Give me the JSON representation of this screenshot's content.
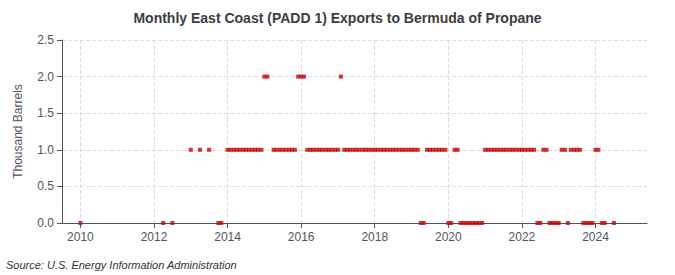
{
  "chart_data": {
    "type": "scatter",
    "title": "Monthly East Coast (PADD 1) Exports to Bermuda of Propane",
    "ylabel": "Thousand Barrels",
    "annotation": "Source: U.S. Energy Information Administration",
    "color": "#cc0000",
    "marker": "square",
    "grid": true,
    "xlim": [
      2009.5,
      2025.4
    ],
    "xticks": [
      2010,
      2012,
      2014,
      2016,
      2018,
      2020,
      2022,
      2024
    ],
    "ylim": [
      0.0,
      2.5
    ],
    "yticks": [
      {
        "value": 0.0,
        "label": "0.0"
      },
      0.5,
      {
        "value": 1.0,
        "label": "1.0"
      },
      1.5,
      {
        "value": 2.0,
        "label": "2.0"
      },
      2.5
    ],
    "x": [
      2010.0,
      2012.25,
      2012.5,
      2013.0,
      2013.25,
      2013.5,
      2013.75,
      2013.83,
      2014.0,
      2014.08,
      2014.17,
      2014.25,
      2014.33,
      2014.42,
      2014.5,
      2014.58,
      2014.67,
      2014.75,
      2014.83,
      2014.92,
      2015.0,
      2015.08,
      2015.25,
      2015.33,
      2015.42,
      2015.5,
      2015.58,
      2015.67,
      2015.75,
      2015.83,
      2015.92,
      2016.0,
      2016.08,
      2016.17,
      2016.25,
      2016.33,
      2016.42,
      2016.5,
      2016.58,
      2016.67,
      2016.75,
      2016.83,
      2016.92,
      2017.0,
      2017.08,
      2017.17,
      2017.25,
      2017.33,
      2017.42,
      2017.5,
      2017.58,
      2017.67,
      2017.75,
      2017.83,
      2017.92,
      2018.0,
      2018.08,
      2018.17,
      2018.25,
      2018.33,
      2018.42,
      2018.5,
      2018.58,
      2018.67,
      2018.75,
      2018.83,
      2018.92,
      2019.0,
      2019.08,
      2019.17,
      2019.25,
      2019.33,
      2019.42,
      2019.5,
      2019.58,
      2019.67,
      2019.75,
      2019.83,
      2019.92,
      2020.0,
      2020.08,
      2020.17,
      2020.25,
      2020.33,
      2020.42,
      2020.5,
      2020.58,
      2020.67,
      2020.75,
      2020.83,
      2020.92,
      2021.0,
      2021.08,
      2021.17,
      2021.25,
      2021.33,
      2021.42,
      2021.5,
      2021.58,
      2021.67,
      2021.75,
      2021.83,
      2021.92,
      2022.0,
      2022.08,
      2022.17,
      2022.25,
      2022.33,
      2022.42,
      2022.5,
      2022.58,
      2022.67,
      2022.75,
      2022.83,
      2022.92,
      2023.0,
      2023.08,
      2023.17,
      2023.25,
      2023.33,
      2023.42,
      2023.5,
      2023.58,
      2023.67,
      2023.75,
      2023.83,
      2023.92,
      2024.0,
      2024.08,
      2024.17,
      2024.25,
      2024.5
    ],
    "values": [
      0.0,
      0.0,
      0.0,
      1.0,
      1.0,
      1.0,
      0.0,
      0.0,
      1.0,
      1.0,
      1.0,
      1.0,
      1.0,
      1.0,
      1.0,
      1.0,
      1.0,
      1.0,
      1.0,
      1.0,
      2.0,
      2.0,
      1.0,
      1.0,
      1.0,
      1.0,
      1.0,
      1.0,
      1.0,
      1.0,
      2.0,
      2.0,
      2.0,
      1.0,
      1.0,
      1.0,
      1.0,
      1.0,
      1.0,
      1.0,
      1.0,
      1.0,
      1.0,
      1.0,
      2.0,
      1.0,
      1.0,
      1.0,
      1.0,
      1.0,
      1.0,
      1.0,
      1.0,
      1.0,
      1.0,
      1.0,
      1.0,
      1.0,
      1.0,
      1.0,
      1.0,
      1.0,
      1.0,
      1.0,
      1.0,
      1.0,
      1.0,
      1.0,
      1.0,
      1.0,
      0.0,
      0.0,
      1.0,
      1.0,
      1.0,
      1.0,
      1.0,
      1.0,
      1.0,
      0.0,
      0.0,
      1.0,
      1.0,
      0.0,
      0.0,
      0.0,
      0.0,
      0.0,
      0.0,
      0.0,
      0.0,
      1.0,
      1.0,
      1.0,
      1.0,
      1.0,
      1.0,
      1.0,
      1.0,
      1.0,
      1.0,
      1.0,
      1.0,
      1.0,
      1.0,
      1.0,
      1.0,
      1.0,
      0.0,
      0.0,
      1.0,
      1.0,
      0.0,
      0.0,
      0.0,
      0.0,
      1.0,
      1.0,
      0.0,
      1.0,
      1.0,
      1.0,
      1.0,
      0.0,
      0.0,
      0.0,
      0.0,
      1.0,
      1.0,
      0.0,
      0.0,
      0.0
    ]
  }
}
